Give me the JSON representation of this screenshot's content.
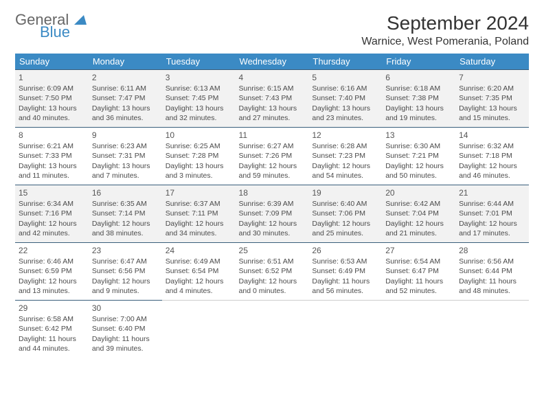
{
  "logo": {
    "general": "General",
    "blue": "Blue"
  },
  "title": "September 2024",
  "location": "Warnice, West Pomerania, Poland",
  "weekdays": [
    "Sunday",
    "Monday",
    "Tuesday",
    "Wednesday",
    "Thursday",
    "Friday",
    "Saturday"
  ],
  "header_bg": "#3b8ac4",
  "shaded_bg": "#f2f2f2",
  "divider_color": "#385d7a",
  "days": [
    {
      "n": 1,
      "sr": "6:09 AM",
      "ss": "7:50 PM",
      "d1": "13 hours",
      "d2": "and 40 minutes."
    },
    {
      "n": 2,
      "sr": "6:11 AM",
      "ss": "7:47 PM",
      "d1": "13 hours",
      "d2": "and 36 minutes."
    },
    {
      "n": 3,
      "sr": "6:13 AM",
      "ss": "7:45 PM",
      "d1": "13 hours",
      "d2": "and 32 minutes."
    },
    {
      "n": 4,
      "sr": "6:15 AM",
      "ss": "7:43 PM",
      "d1": "13 hours",
      "d2": "and 27 minutes."
    },
    {
      "n": 5,
      "sr": "6:16 AM",
      "ss": "7:40 PM",
      "d1": "13 hours",
      "d2": "and 23 minutes."
    },
    {
      "n": 6,
      "sr": "6:18 AM",
      "ss": "7:38 PM",
      "d1": "13 hours",
      "d2": "and 19 minutes."
    },
    {
      "n": 7,
      "sr": "6:20 AM",
      "ss": "7:35 PM",
      "d1": "13 hours",
      "d2": "and 15 minutes."
    },
    {
      "n": 8,
      "sr": "6:21 AM",
      "ss": "7:33 PM",
      "d1": "13 hours",
      "d2": "and 11 minutes."
    },
    {
      "n": 9,
      "sr": "6:23 AM",
      "ss": "7:31 PM",
      "d1": "13 hours",
      "d2": "and 7 minutes."
    },
    {
      "n": 10,
      "sr": "6:25 AM",
      "ss": "7:28 PM",
      "d1": "13 hours",
      "d2": "and 3 minutes."
    },
    {
      "n": 11,
      "sr": "6:27 AM",
      "ss": "7:26 PM",
      "d1": "12 hours",
      "d2": "and 59 minutes."
    },
    {
      "n": 12,
      "sr": "6:28 AM",
      "ss": "7:23 PM",
      "d1": "12 hours",
      "d2": "and 54 minutes."
    },
    {
      "n": 13,
      "sr": "6:30 AM",
      "ss": "7:21 PM",
      "d1": "12 hours",
      "d2": "and 50 minutes."
    },
    {
      "n": 14,
      "sr": "6:32 AM",
      "ss": "7:18 PM",
      "d1": "12 hours",
      "d2": "and 46 minutes."
    },
    {
      "n": 15,
      "sr": "6:34 AM",
      "ss": "7:16 PM",
      "d1": "12 hours",
      "d2": "and 42 minutes."
    },
    {
      "n": 16,
      "sr": "6:35 AM",
      "ss": "7:14 PM",
      "d1": "12 hours",
      "d2": "and 38 minutes."
    },
    {
      "n": 17,
      "sr": "6:37 AM",
      "ss": "7:11 PM",
      "d1": "12 hours",
      "d2": "and 34 minutes."
    },
    {
      "n": 18,
      "sr": "6:39 AM",
      "ss": "7:09 PM",
      "d1": "12 hours",
      "d2": "and 30 minutes."
    },
    {
      "n": 19,
      "sr": "6:40 AM",
      "ss": "7:06 PM",
      "d1": "12 hours",
      "d2": "and 25 minutes."
    },
    {
      "n": 20,
      "sr": "6:42 AM",
      "ss": "7:04 PM",
      "d1": "12 hours",
      "d2": "and 21 minutes."
    },
    {
      "n": 21,
      "sr": "6:44 AM",
      "ss": "7:01 PM",
      "d1": "12 hours",
      "d2": "and 17 minutes."
    },
    {
      "n": 22,
      "sr": "6:46 AM",
      "ss": "6:59 PM",
      "d1": "12 hours",
      "d2": "and 13 minutes."
    },
    {
      "n": 23,
      "sr": "6:47 AM",
      "ss": "6:56 PM",
      "d1": "12 hours",
      "d2": "and 9 minutes."
    },
    {
      "n": 24,
      "sr": "6:49 AM",
      "ss": "6:54 PM",
      "d1": "12 hours",
      "d2": "and 4 minutes."
    },
    {
      "n": 25,
      "sr": "6:51 AM",
      "ss": "6:52 PM",
      "d1": "12 hours",
      "d2": "and 0 minutes."
    },
    {
      "n": 26,
      "sr": "6:53 AM",
      "ss": "6:49 PM",
      "d1": "11 hours",
      "d2": "and 56 minutes."
    },
    {
      "n": 27,
      "sr": "6:54 AM",
      "ss": "6:47 PM",
      "d1": "11 hours",
      "d2": "and 52 minutes."
    },
    {
      "n": 28,
      "sr": "6:56 AM",
      "ss": "6:44 PM",
      "d1": "11 hours",
      "d2": "and 48 minutes."
    },
    {
      "n": 29,
      "sr": "6:58 AM",
      "ss": "6:42 PM",
      "d1": "11 hours",
      "d2": "and 44 minutes."
    },
    {
      "n": 30,
      "sr": "7:00 AM",
      "ss": "6:40 PM",
      "d1": "11 hours",
      "d2": "and 39 minutes."
    }
  ],
  "labels": {
    "sunrise": "Sunrise: ",
    "sunset": "Sunset: ",
    "daylight": "Daylight: "
  },
  "shaded_rows": [
    0,
    2
  ]
}
